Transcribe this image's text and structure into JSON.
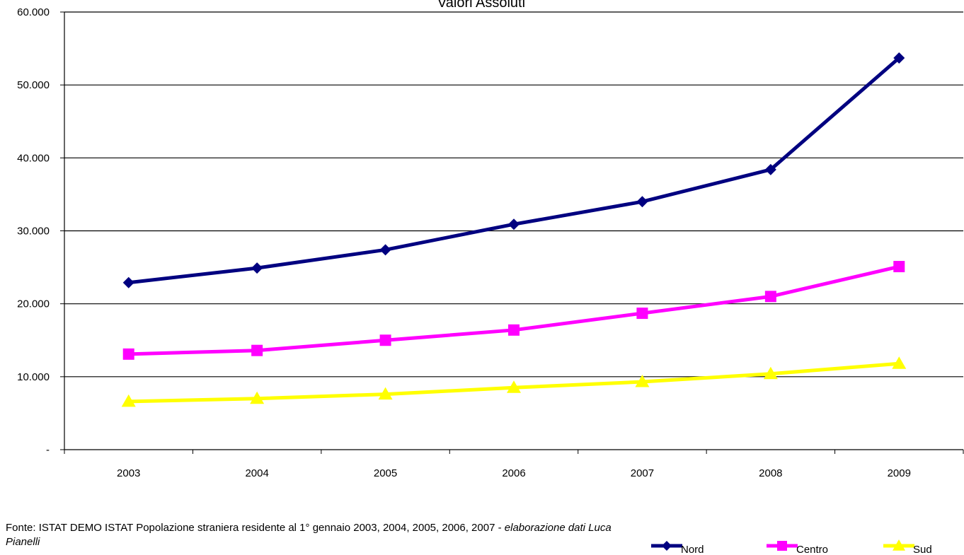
{
  "chart_data": {
    "type": "line",
    "title": "Valori Assoluti",
    "categories": [
      "2003",
      "2004",
      "2005",
      "2006",
      "2007",
      "2008",
      "2009"
    ],
    "y_ticks": [
      "-",
      "10.000",
      "20.000",
      "30.000",
      "40.000",
      "50.000",
      "60.000"
    ],
    "ylim": [
      0,
      60000
    ],
    "grid": true,
    "legend_position": "bottom-right",
    "series": [
      {
        "name": "Nord",
        "color": "#000080",
        "marker": "diamond",
        "values": [
          22900,
          24900,
          27400,
          30900,
          34000,
          38400,
          53700
        ]
      },
      {
        "name": "Centro",
        "color": "#FF00FF",
        "marker": "square",
        "values": [
          13100,
          13600,
          15000,
          16400,
          18700,
          21000,
          25100
        ]
      },
      {
        "name": "Sud",
        "color": "#FFFF00",
        "marker": "triangle",
        "values": [
          6600,
          7000,
          7600,
          8500,
          9300,
          10400,
          11800
        ]
      }
    ]
  },
  "source": {
    "text": "Fonte: ISTAT DEMO ISTAT Popolazione straniera residente al 1° gennaio 2003, 2004, 2005, 2006, 2007 - ",
    "italic_text": "elaborazione dati Luca Pianelli"
  }
}
